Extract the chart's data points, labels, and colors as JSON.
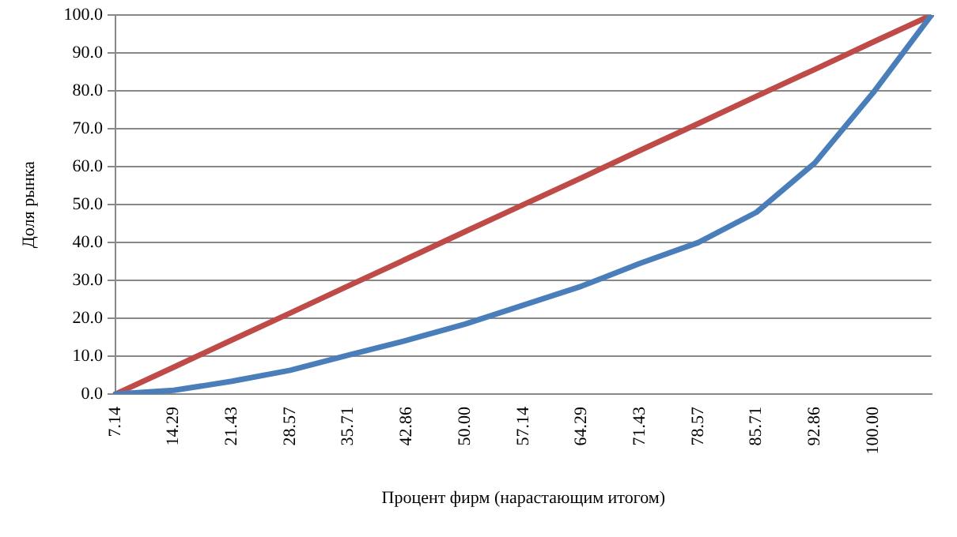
{
  "chart_data": {
    "type": "line",
    "xlabel": "Процент фирм (нарастающим итогом)",
    "ylabel": "Доля рынка",
    "categories": [
      "7.14",
      "14.29",
      "21.43",
      "28.57",
      "35.71",
      "42.86",
      "50.00",
      "57.14",
      "64.29",
      "71.43",
      "78.57",
      "85.71",
      "92.86",
      "100.00",
      null
    ],
    "series": [
      {
        "color": "#4a7ebb",
        "values": [
          0,
          1.0,
          3.4,
          6.3,
          10.3,
          14.2,
          18.5,
          23.5,
          28.5,
          34.5,
          40,
          48,
          61,
          79.5,
          100
        ]
      },
      {
        "color": "#be4b48",
        "values": [
          0,
          7.1,
          14.3,
          21.4,
          28.6,
          35.7,
          42.9,
          50,
          57.1,
          64.3,
          71.4,
          78.6,
          85.7,
          92.9,
          100
        ]
      }
    ],
    "ylim": [
      0,
      100
    ],
    "yticks": [
      {
        "value": 0,
        "label": "0.0"
      },
      {
        "value": 10,
        "label": "10.0"
      },
      {
        "value": 20,
        "label": "20.0"
      },
      {
        "value": 30,
        "label": "30.0"
      },
      {
        "value": 40,
        "label": "40.0"
      },
      {
        "value": 50,
        "label": "50.0"
      },
      {
        "value": 60,
        "label": "60.0"
      },
      {
        "value": 70,
        "label": "70.0"
      },
      {
        "value": 80,
        "label": "80.0"
      },
      {
        "value": 90,
        "label": "90.0"
      },
      {
        "value": 100,
        "label": "100.0"
      }
    ],
    "grid": "y",
    "legend": false,
    "marker": "none",
    "line_style": "solid"
  }
}
